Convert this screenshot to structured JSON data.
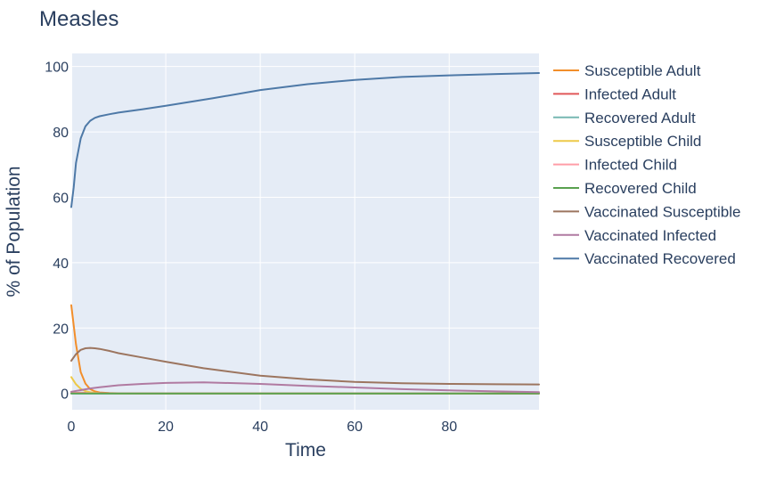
{
  "chart_data": {
    "type": "line",
    "title": "Measles",
    "xlabel": "Time",
    "ylabel": "% of Population",
    "xlim": [
      0,
      99
    ],
    "ylim": [
      -5,
      104
    ],
    "x_ticks": [
      0,
      20,
      40,
      60,
      80
    ],
    "y_ticks": [
      0,
      20,
      40,
      60,
      80,
      100
    ],
    "grid": true,
    "legend_position": "right",
    "plot_background": "#e5ecf6",
    "series": [
      {
        "name": "Susceptible Adult",
        "color": "#f28e2b",
        "x": [
          0,
          1,
          2,
          3,
          4,
          5,
          6,
          8,
          10,
          15,
          99
        ],
        "y": [
          27,
          15,
          6.5,
          3,
          1.3,
          0.6,
          0.3,
          0.1,
          0.05,
          0.02,
          0
        ]
      },
      {
        "name": "Infected Adult",
        "color": "#e15759",
        "x": [
          0,
          2,
          5,
          10,
          99
        ],
        "y": [
          0.1,
          0.2,
          0.1,
          0.02,
          0
        ]
      },
      {
        "name": "Recovered Adult",
        "color": "#76b7b2",
        "x": [
          0,
          99
        ],
        "y": [
          0,
          0
        ]
      },
      {
        "name": "Susceptible Child",
        "color": "#edc948",
        "x": [
          0,
          1,
          2,
          3,
          4,
          5,
          6,
          8,
          10,
          99
        ],
        "y": [
          5,
          2.8,
          1.4,
          0.7,
          0.35,
          0.17,
          0.08,
          0.02,
          0,
          0
        ]
      },
      {
        "name": "Infected Child",
        "color": "#ff9da7",
        "x": [
          0,
          2,
          5,
          10,
          99
        ],
        "y": [
          0.1,
          0.15,
          0.05,
          0.01,
          0
        ]
      },
      {
        "name": "Recovered Child",
        "color": "#59a14f",
        "x": [
          0,
          99
        ],
        "y": [
          0,
          0
        ]
      },
      {
        "name": "Vaccinated Susceptible",
        "color": "#9c755f",
        "x": [
          0,
          1,
          2,
          3,
          4,
          5,
          6,
          8,
          10,
          15,
          20,
          28,
          40,
          50,
          60,
          70,
          80,
          90,
          99
        ],
        "y": [
          10,
          12,
          13.3,
          13.8,
          13.9,
          13.8,
          13.6,
          13,
          12.3,
          11,
          9.7,
          7.7,
          5.4,
          4.3,
          3.5,
          3.1,
          2.9,
          2.8,
          2.75
        ]
      },
      {
        "name": "Vaccinated Infected",
        "color": "#b07aa1",
        "x": [
          0,
          2,
          4,
          6,
          8,
          10,
          15,
          20,
          28,
          40,
          50,
          60,
          70,
          80,
          90,
          99
        ],
        "y": [
          0.5,
          1,
          1.5,
          1.9,
          2.2,
          2.5,
          2.9,
          3.2,
          3.4,
          2.9,
          2.3,
          1.8,
          1.3,
          0.9,
          0.6,
          0.4
        ]
      },
      {
        "name": "Vaccinated Recovered",
        "color": "#4e79a7",
        "x": [
          0,
          0.5,
          1,
          2,
          3,
          4,
          5,
          6,
          8,
          10,
          15,
          20,
          30,
          40,
          50,
          60,
          70,
          80,
          90,
          99
        ],
        "y": [
          57,
          63,
          70.5,
          78,
          81.7,
          83.4,
          84.3,
          84.8,
          85.4,
          85.9,
          86.9,
          88,
          90.3,
          92.8,
          94.6,
          95.9,
          96.8,
          97.3,
          97.7,
          98
        ]
      }
    ]
  }
}
